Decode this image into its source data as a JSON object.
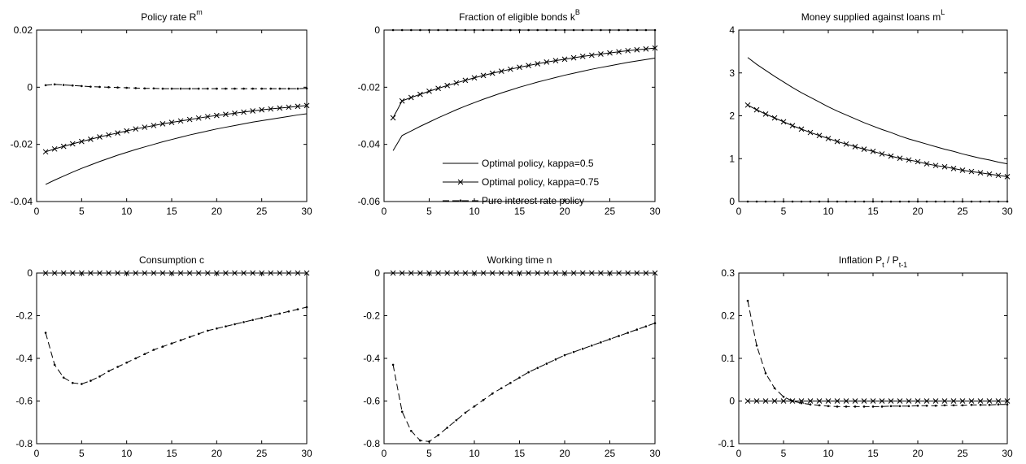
{
  "legend": {
    "entries": [
      "Optimal policy, kappa=0.5",
      "Optimal policy, kappa=0.75",
      "Pure interest rate policy"
    ]
  },
  "chart_data": [
    {
      "type": "line",
      "title": "Policy rate R",
      "title_sup": "m",
      "xlim": [
        0,
        30
      ],
      "ylim": [
        -0.04,
        0.02
      ],
      "xticks": [
        0,
        5,
        10,
        15,
        20,
        25,
        30
      ],
      "xtick_labels": [
        "0",
        "5",
        "10",
        "15",
        "20",
        "25",
        "30"
      ],
      "yticks": [
        -0.04,
        -0.02,
        0,
        0.02
      ],
      "ytick_labels": [
        "-0.04",
        "-0.02",
        "0",
        "0.02"
      ],
      "x": [
        1,
        2,
        3,
        4,
        5,
        6,
        7,
        8,
        9,
        10,
        11,
        12,
        13,
        14,
        15,
        16,
        17,
        18,
        19,
        20,
        21,
        22,
        23,
        24,
        25,
        26,
        27,
        28,
        29,
        30
      ],
      "series": [
        {
          "values": [
            -0.034,
            -0.0325,
            -0.0311,
            -0.0297,
            -0.0284,
            -0.0272,
            -0.026,
            -0.0249,
            -0.0238,
            -0.0228,
            -0.0218,
            -0.0209,
            -0.02,
            -0.0191,
            -0.0183,
            -0.0175,
            -0.0167,
            -0.016,
            -0.0153,
            -0.0146,
            -0.014,
            -0.0134,
            -0.0128,
            -0.0122,
            -0.0117,
            -0.0112,
            -0.0107,
            -0.0102,
            -0.0097,
            -0.0093
          ]
        },
        {
          "values": [
            -0.0226,
            -0.0216,
            -0.0207,
            -0.0198,
            -0.019,
            -0.0182,
            -0.0174,
            -0.0167,
            -0.016,
            -0.0153,
            -0.0146,
            -0.014,
            -0.0134,
            -0.0128,
            -0.0123,
            -0.0118,
            -0.0113,
            -0.0108,
            -0.0103,
            -0.0099,
            -0.0095,
            -0.0091,
            -0.0087,
            -0.0083,
            -0.0079,
            -0.0076,
            -0.0073,
            -0.007,
            -0.0067,
            -0.0064
          ]
        },
        {
          "values": [
            0.0007,
            0.001,
            0.0008,
            0.0006,
            0.0004,
            0.0002,
            0.0001,
            0,
            -0.0001,
            -0.0002,
            -0.0003,
            -0.0004,
            -0.0004,
            -0.0005,
            -0.0005,
            -0.0005,
            -0.0005,
            -0.0005,
            -0.0005,
            -0.0005,
            -0.0005,
            -0.0005,
            -0.0005,
            -0.0005,
            -0.0005,
            -0.0005,
            -0.0005,
            -0.0005,
            -0.0005,
            -0.0004
          ]
        }
      ]
    },
    {
      "type": "line",
      "title": "Fraction of eligible bonds k",
      "title_sup": "B",
      "xlim": [
        0,
        30
      ],
      "ylim": [
        -0.06,
        0
      ],
      "xticks": [
        0,
        5,
        10,
        15,
        20,
        25,
        30
      ],
      "xtick_labels": [
        "0",
        "5",
        "10",
        "15",
        "20",
        "25",
        "30"
      ],
      "yticks": [
        -0.06,
        -0.04,
        -0.02,
        0
      ],
      "ytick_labels": [
        "-0.06",
        "-0.04",
        "-0.02",
        "0"
      ],
      "x": [
        1,
        2,
        3,
        4,
        5,
        6,
        7,
        8,
        9,
        10,
        11,
        12,
        13,
        14,
        15,
        16,
        17,
        18,
        19,
        20,
        21,
        22,
        23,
        24,
        25,
        26,
        27,
        28,
        29,
        30
      ],
      "series": [
        {
          "values": [
            -0.0422,
            -0.0369,
            -0.0353,
            -0.0337,
            -0.0322,
            -0.0307,
            -0.0293,
            -0.0279,
            -0.0266,
            -0.0254,
            -0.0242,
            -0.0231,
            -0.022,
            -0.021,
            -0.02,
            -0.0191,
            -0.0182,
            -0.0174,
            -0.0166,
            -0.0158,
            -0.0151,
            -0.0144,
            -0.0137,
            -0.0131,
            -0.0125,
            -0.0119,
            -0.0113,
            -0.0108,
            -0.0103,
            -0.0098
          ]
        },
        {
          "values": [
            -0.0307,
            -0.0248,
            -0.0236,
            -0.0225,
            -0.0214,
            -0.0204,
            -0.0194,
            -0.0185,
            -0.0176,
            -0.0167,
            -0.0159,
            -0.0151,
            -0.0144,
            -0.0137,
            -0.013,
            -0.0124,
            -0.0118,
            -0.0112,
            -0.0107,
            -0.0102,
            -0.0097,
            -0.0092,
            -0.0088,
            -0.0084,
            -0.008,
            -0.0076,
            -0.0072,
            -0.0069,
            -0.0066,
            -0.0063
          ]
        },
        {
          "values": [
            0,
            0,
            0,
            0,
            0,
            0,
            0,
            0,
            0,
            0,
            0,
            0,
            0,
            0,
            0,
            0,
            0,
            0,
            0,
            0,
            0,
            0,
            0,
            0,
            0,
            0,
            0,
            0,
            0,
            0
          ]
        }
      ]
    },
    {
      "type": "line",
      "title": "Money supplied against loans m",
      "title_sup": "L",
      "xlim": [
        0,
        30
      ],
      "ylim": [
        0,
        4
      ],
      "xticks": [
        0,
        5,
        10,
        15,
        20,
        25,
        30
      ],
      "xtick_labels": [
        "0",
        "5",
        "10",
        "15",
        "20",
        "25",
        "30"
      ],
      "yticks": [
        0,
        1,
        2,
        3,
        4
      ],
      "ytick_labels": [
        "0",
        "1",
        "2",
        "3",
        "4"
      ],
      "x": [
        1,
        2,
        3,
        4,
        5,
        6,
        7,
        8,
        9,
        10,
        11,
        12,
        13,
        14,
        15,
        16,
        17,
        18,
        19,
        20,
        21,
        22,
        23,
        24,
        25,
        26,
        27,
        28,
        29,
        30
      ],
      "series": [
        {
          "values": [
            3.36,
            3.2,
            3.06,
            2.92,
            2.79,
            2.66,
            2.54,
            2.43,
            2.32,
            2.21,
            2.11,
            2.02,
            1.93,
            1.84,
            1.76,
            1.68,
            1.61,
            1.53,
            1.46,
            1.4,
            1.34,
            1.28,
            1.22,
            1.17,
            1.11,
            1.06,
            1.01,
            0.97,
            0.92,
            0.88
          ]
        },
        {
          "values": [
            2.25,
            2.14,
            2.04,
            1.95,
            1.86,
            1.77,
            1.69,
            1.61,
            1.54,
            1.47,
            1.4,
            1.34,
            1.28,
            1.22,
            1.17,
            1.11,
            1.06,
            1.01,
            0.97,
            0.93,
            0.88,
            0.84,
            0.81,
            0.77,
            0.73,
            0.7,
            0.67,
            0.64,
            0.61,
            0.58
          ]
        },
        {
          "values": [
            0,
            0,
            0,
            0,
            0,
            0,
            0,
            0,
            0,
            0,
            0,
            0,
            0,
            0,
            0,
            0,
            0,
            0,
            0,
            0,
            0,
            0,
            0,
            0,
            0,
            0,
            0,
            0,
            0,
            0
          ]
        }
      ]
    },
    {
      "type": "line",
      "title": "Consumption c",
      "xlim": [
        0,
        30
      ],
      "ylim": [
        -0.8,
        0
      ],
      "xticks": [
        0,
        5,
        10,
        15,
        20,
        25,
        30
      ],
      "xtick_labels": [
        "0",
        "5",
        "10",
        "15",
        "20",
        "25",
        "30"
      ],
      "yticks": [
        -0.8,
        -0.6,
        -0.4,
        -0.2,
        0
      ],
      "ytick_labels": [
        "-0.8",
        "-0.6",
        "-0.4",
        "-0.2",
        "0"
      ],
      "x": [
        1,
        2,
        3,
        4,
        5,
        6,
        7,
        8,
        9,
        10,
        11,
        12,
        13,
        14,
        15,
        16,
        17,
        18,
        19,
        20,
        21,
        22,
        23,
        24,
        25,
        26,
        27,
        28,
        29,
        30
      ],
      "series": [
        {
          "values": [
            0,
            0,
            0,
            0,
            0,
            0,
            0,
            0,
            0,
            0,
            0,
            0,
            0,
            0,
            0,
            0,
            0,
            0,
            0,
            0,
            0,
            0,
            0,
            0,
            0,
            0,
            0,
            0,
            0,
            0
          ]
        },
        {
          "values": [
            0,
            0,
            0,
            0,
            0,
            0,
            0,
            0,
            0,
            0,
            0,
            0,
            0,
            0,
            0,
            0,
            0,
            0,
            0,
            0,
            0,
            0,
            0,
            0,
            0,
            0,
            0,
            0,
            0,
            0
          ]
        },
        {
          "values": [
            -0.28,
            -0.43,
            -0.49,
            -0.515,
            -0.52,
            -0.505,
            -0.485,
            -0.46,
            -0.44,
            -0.42,
            -0.4,
            -0.38,
            -0.36,
            -0.345,
            -0.33,
            -0.315,
            -0.3,
            -0.285,
            -0.27,
            -0.26,
            -0.25,
            -0.24,
            -0.23,
            -0.22,
            -0.21,
            -0.2,
            -0.19,
            -0.18,
            -0.17,
            -0.16
          ]
        }
      ]
    },
    {
      "type": "line",
      "title": "Working time n",
      "xlim": [
        0,
        30
      ],
      "ylim": [
        -0.8,
        0
      ],
      "xticks": [
        0,
        5,
        10,
        15,
        20,
        25,
        30
      ],
      "xtick_labels": [
        "0",
        "5",
        "10",
        "15",
        "20",
        "25",
        "30"
      ],
      "yticks": [
        -0.8,
        -0.6,
        -0.4,
        -0.2,
        0
      ],
      "ytick_labels": [
        "-0.8",
        "-0.6",
        "-0.4",
        "-0.2",
        "0"
      ],
      "x": [
        1,
        2,
        3,
        4,
        5,
        6,
        7,
        8,
        9,
        10,
        11,
        12,
        13,
        14,
        15,
        16,
        17,
        18,
        19,
        20,
        21,
        22,
        23,
        24,
        25,
        26,
        27,
        28,
        29,
        30
      ],
      "series": [
        {
          "values": [
            0,
            0,
            0,
            0,
            0,
            0,
            0,
            0,
            0,
            0,
            0,
            0,
            0,
            0,
            0,
            0,
            0,
            0,
            0,
            0,
            0,
            0,
            0,
            0,
            0,
            0,
            0,
            0,
            0,
            0
          ]
        },
        {
          "values": [
            0,
            0,
            0,
            0,
            0,
            0,
            0,
            0,
            0,
            0,
            0,
            0,
            0,
            0,
            0,
            0,
            0,
            0,
            0,
            0,
            0,
            0,
            0,
            0,
            0,
            0,
            0,
            0,
            0,
            0
          ]
        },
        {
          "values": [
            -0.43,
            -0.65,
            -0.74,
            -0.785,
            -0.79,
            -0.76,
            -0.725,
            -0.69,
            -0.655,
            -0.625,
            -0.595,
            -0.565,
            -0.54,
            -0.515,
            -0.49,
            -0.465,
            -0.445,
            -0.425,
            -0.405,
            -0.385,
            -0.37,
            -0.355,
            -0.34,
            -0.325,
            -0.31,
            -0.295,
            -0.28,
            -0.265,
            -0.25,
            -0.235
          ]
        }
      ]
    },
    {
      "type": "line",
      "title": "Inflation P",
      "title_rest": [
        {
          "text": "t",
          "sub": true
        },
        {
          "text": " / P",
          "sub": false
        },
        {
          "text": "t-1",
          "sub": true
        }
      ],
      "xlim": [
        0,
        30
      ],
      "ylim": [
        -0.1,
        0.3
      ],
      "xticks": [
        0,
        5,
        10,
        15,
        20,
        25,
        30
      ],
      "xtick_labels": [
        "0",
        "5",
        "10",
        "15",
        "20",
        "25",
        "30"
      ],
      "yticks": [
        -0.1,
        0,
        0.1,
        0.2,
        0.3
      ],
      "ytick_labels": [
        "-0.1",
        "0",
        "0.1",
        "0.2",
        "0.3"
      ],
      "x": [
        1,
        2,
        3,
        4,
        5,
        6,
        7,
        8,
        9,
        10,
        11,
        12,
        13,
        14,
        15,
        16,
        17,
        18,
        19,
        20,
        21,
        22,
        23,
        24,
        25,
        26,
        27,
        28,
        29,
        30
      ],
      "series": [
        {
          "values": [
            0,
            0,
            0,
            0,
            0,
            0,
            0,
            0,
            0,
            0,
            0,
            0,
            0,
            0,
            0,
            0,
            0,
            0,
            0,
            0,
            0,
            0,
            0,
            0,
            0,
            0,
            0,
            0,
            0,
            0
          ]
        },
        {
          "values": [
            0,
            0,
            0,
            0,
            0,
            0,
            0,
            0,
            0,
            0,
            0,
            0,
            0,
            0,
            0,
            0,
            0,
            0,
            0,
            0,
            0,
            0,
            0,
            0,
            0,
            0,
            0,
            0,
            0,
            0
          ]
        },
        {
          "values": [
            0.235,
            0.13,
            0.065,
            0.03,
            0.01,
            0,
            -0.005,
            -0.008,
            -0.01,
            -0.012,
            -0.013,
            -0.013,
            -0.013,
            -0.013,
            -0.013,
            -0.013,
            -0.012,
            -0.012,
            -0.012,
            -0.011,
            -0.011,
            -0.011,
            -0.01,
            -0.01,
            -0.01,
            -0.009,
            -0.009,
            -0.009,
            -0.008,
            -0.008
          ]
        }
      ]
    }
  ]
}
